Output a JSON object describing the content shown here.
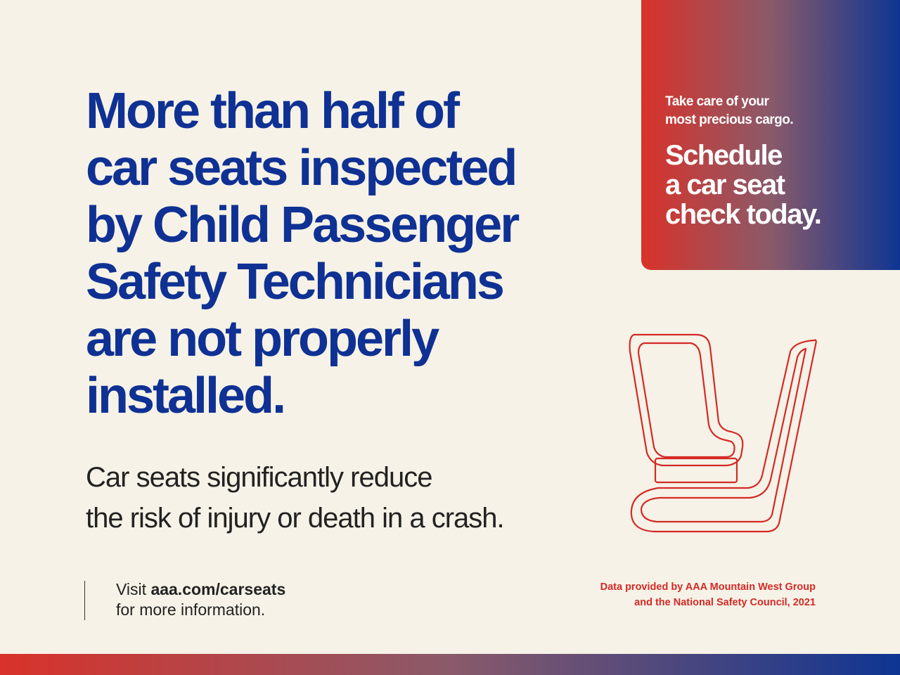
{
  "headline": {
    "lines": [
      "More than half of",
      "car seats inspected",
      "by Child Passenger",
      "Safety Technicians",
      "are not properly",
      "installed."
    ]
  },
  "subtext": {
    "lines": [
      "Car seats significantly reduce",
      "the risk of injury or death in a crash."
    ]
  },
  "cta": {
    "small_lines": [
      "Take care of your",
      "most precious cargo."
    ],
    "big_lines": [
      "Schedule",
      "a car seat",
      "check today."
    ]
  },
  "footer": {
    "visit_prefix": "Visit ",
    "visit_url": "aaa.com/carseats",
    "visit_suffix": "for more information.",
    "source_lines": [
      "Data provided by AAA Mountain West Group",
      "and the National  Safety Council, 2021"
    ]
  },
  "icons": {
    "seat": "car-seat-icon"
  },
  "colors": {
    "background": "#f6f2e7",
    "headline": "#0f3194",
    "accent_red": "#d32a26",
    "gradient_start": "#d9322a",
    "gradient_end": "#0e3592"
  }
}
